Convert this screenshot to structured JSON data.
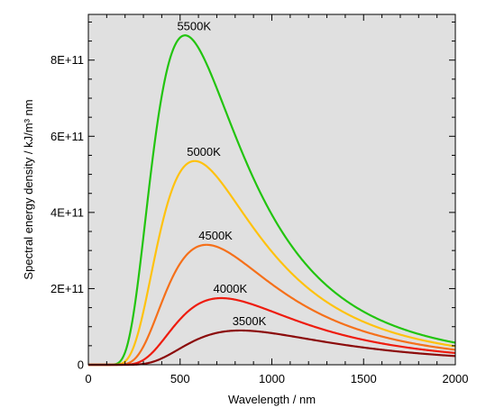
{
  "chart_data": {
    "type": "line",
    "title": "",
    "xlabel": "Wavelength / nm",
    "ylabel": "Spectral energy density / kJ/m³ nm",
    "xlim": [
      0,
      2000
    ],
    "ylim": [
      0,
      920000000000.0
    ],
    "x_ticks": [
      0,
      500,
      1000,
      1500,
      2000
    ],
    "x_tick_labels": [
      "0",
      "500",
      "1000",
      "1500",
      "2000"
    ],
    "y_ticks": [
      0,
      200000000000.0,
      400000000000.0,
      600000000000.0,
      800000000000.0
    ],
    "y_tick_labels": [
      "0",
      "2E+11",
      "4E+11",
      "6E+11",
      "8E+11"
    ],
    "grid": false,
    "legend": "none (curves labeled directly above peaks)",
    "background_color": "#e0e0e0",
    "series": [
      {
        "name": "5500K",
        "temperature": 5500,
        "color": "#22c40f",
        "peak_x": 527,
        "peak_y": 865000000000.0
      },
      {
        "name": "5000K",
        "temperature": 5000,
        "color": "#ffc20e",
        "peak_x": 580,
        "peak_y": 535000000000.0
      },
      {
        "name": "4500K",
        "temperature": 4500,
        "color": "#f5701a",
        "peak_x": 644,
        "peak_y": 315000000000.0
      },
      {
        "name": "4000K",
        "temperature": 4000,
        "color": "#ee1c0f",
        "peak_x": 724,
        "peak_y": 175000000000.0
      },
      {
        "name": "3500K",
        "temperature": 3500,
        "color": "#8b0b0b",
        "peak_x": 828,
        "peak_y": 90000000000.0
      }
    ]
  }
}
